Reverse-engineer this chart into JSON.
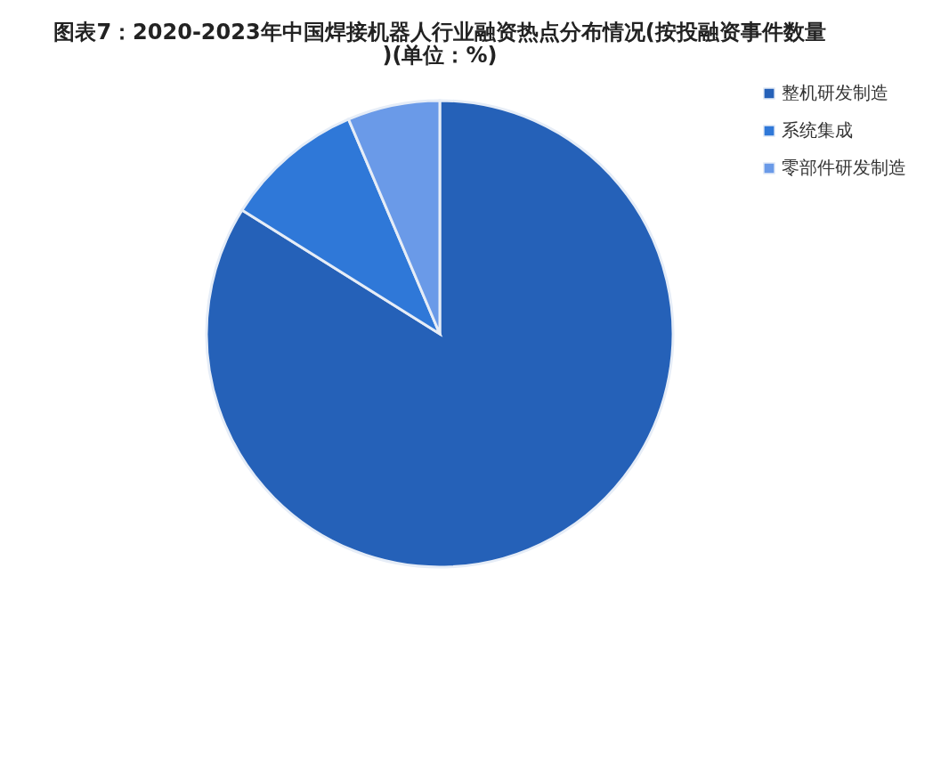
{
  "chart_data": {
    "type": "pie",
    "title": "图表7：2020-2023年中国焊接机器人行业融资热点分布情况(按投融资事件数量)(单位：%)",
    "categories": [
      "整机研发制造",
      "系统集成",
      "零部件研发制造"
    ],
    "values": [
      83.9,
      9.7,
      6.4
    ],
    "colors": [
      "#2561b8",
      "#2f78d8",
      "#6a9ae8"
    ],
    "legend": "right"
  }
}
